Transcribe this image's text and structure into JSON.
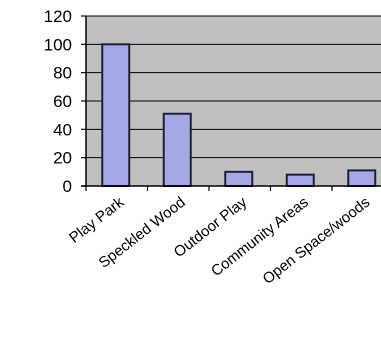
{
  "chart_data": {
    "type": "bar",
    "categories": [
      "Play Park",
      "Speckled Wood",
      "Outdoor Play",
      "Community Areas",
      "Open Space/woods"
    ],
    "values": [
      100,
      51,
      10,
      8,
      11
    ],
    "ylim": [
      0,
      120
    ],
    "yticks": [
      0,
      20,
      40,
      60,
      80,
      100,
      120
    ],
    "grid": true,
    "legend": "none",
    "colors": {
      "plot_bg": "#c0c0c0",
      "bar_fill": "#a5a8e4",
      "bar_stroke": "#1f1f3a",
      "grid": "#000000",
      "text": "#000000"
    }
  }
}
